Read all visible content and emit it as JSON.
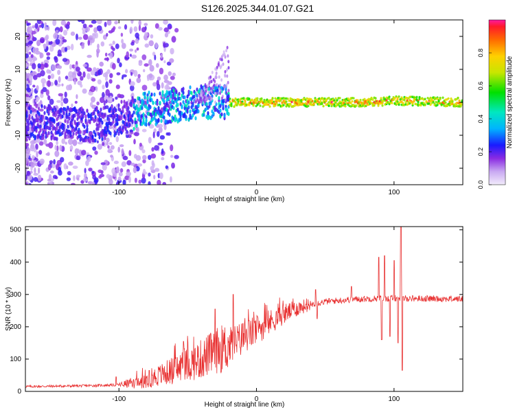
{
  "title": "S126.2025.344.01.07.G21",
  "chart_data": [
    {
      "type": "heatmap",
      "name": "spectrogram",
      "xlabel": "Height of straight line (km)",
      "ylabel": "Frequency (Hz)",
      "xlim": [
        -168,
        150
      ],
      "ylim": [
        -25,
        25
      ],
      "xticks": [
        -100,
        0,
        100
      ],
      "yticks": [
        -20,
        -10,
        0,
        10,
        20
      ],
      "colorbar": {
        "label": "Normalized spectral amplitude",
        "range": [
          0,
          1
        ],
        "ticks": [
          0.0,
          0.2,
          0.4,
          0.6,
          0.8
        ]
      },
      "trend_ridge": [
        {
          "x": -150,
          "y": -6
        },
        {
          "x": -120,
          "y": -7
        },
        {
          "x": -100,
          "y": -5
        },
        {
          "x": -80,
          "y": -2
        },
        {
          "x": -60,
          "y": -1
        },
        {
          "x": -40,
          "y": 0
        },
        {
          "x": -25,
          "y": 0
        },
        {
          "x": 0,
          "y": 0
        },
        {
          "x": 50,
          "y": 0
        },
        {
          "x": 80,
          "y": 0
        },
        {
          "x": 100,
          "y": 0.5
        },
        {
          "x": 150,
          "y": 0
        }
      ]
    },
    {
      "type": "line",
      "name": "snr",
      "xlabel": "Height of straight line (km)",
      "ylabel": "SNR (10 * v/v)",
      "xlim": [
        -168,
        150
      ],
      "ylim": [
        0,
        510
      ],
      "xticks": [
        -100,
        0,
        100
      ],
      "yticks": [
        0,
        100,
        200,
        300,
        400,
        500
      ],
      "color": "#e83030",
      "trend": [
        {
          "x": -168,
          "y": 15
        },
        {
          "x": -130,
          "y": 17
        },
        {
          "x": -100,
          "y": 20
        },
        {
          "x": -85,
          "y": 30
        },
        {
          "x": -70,
          "y": 50
        },
        {
          "x": -55,
          "y": 75
        },
        {
          "x": -40,
          "y": 100
        },
        {
          "x": -30,
          "y": 125
        },
        {
          "x": -20,
          "y": 140
        },
        {
          "x": -10,
          "y": 165
        },
        {
          "x": 0,
          "y": 190
        },
        {
          "x": 10,
          "y": 215
        },
        {
          "x": 20,
          "y": 240
        },
        {
          "x": 30,
          "y": 258
        },
        {
          "x": 40,
          "y": 270
        },
        {
          "x": 50,
          "y": 278
        },
        {
          "x": 70,
          "y": 285
        },
        {
          "x": 90,
          "y": 288
        },
        {
          "x": 110,
          "y": 288
        },
        {
          "x": 130,
          "y": 287
        },
        {
          "x": 150,
          "y": 286
        }
      ],
      "spikes": [
        {
          "x": -102,
          "y": 45
        },
        {
          "x": -78,
          "y": 65
        },
        {
          "x": -53,
          "y": 155
        },
        {
          "x": -30,
          "y": 255
        },
        {
          "x": -17,
          "y": 300
        },
        {
          "x": -10,
          "y": 210
        },
        {
          "x": 43,
          "y": 315
        },
        {
          "x": 44,
          "y": 225
        },
        {
          "x": 69,
          "y": 325
        },
        {
          "x": 89,
          "y": 415
        },
        {
          "x": 91,
          "y": 160
        },
        {
          "x": 93,
          "y": 420
        },
        {
          "x": 97,
          "y": 170
        },
        {
          "x": 100,
          "y": 405
        },
        {
          "x": 103,
          "y": 150
        },
        {
          "x": 105,
          "y": 510
        },
        {
          "x": 106,
          "y": 65
        }
      ]
    }
  ]
}
